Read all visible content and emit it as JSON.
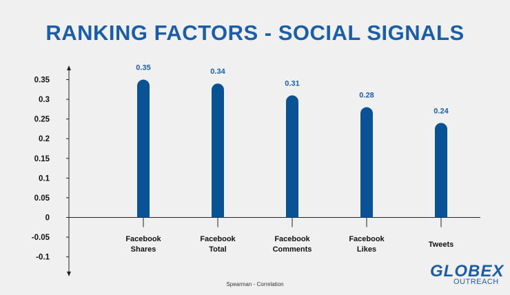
{
  "title": "RANKING FACTORS - SOCIAL SIGNALS",
  "caption": "Spearman - Correlation",
  "logo": {
    "main": "GLOBEX",
    "sub": "OUTREACH"
  },
  "colors": {
    "bar": "#0a5296",
    "title": "#1a5ea8",
    "label": "#1a5ea8",
    "axis": "#222222"
  },
  "chart_data": {
    "type": "bar",
    "title": "RANKING FACTORS - SOCIAL SIGNALS",
    "categories": [
      [
        "Facebook",
        "Shares"
      ],
      [
        "Facebook",
        "Total"
      ],
      [
        "Facebook",
        "Comments"
      ],
      [
        "Facebook",
        "Likes"
      ],
      [
        "Tweets"
      ]
    ],
    "values": [
      0.35,
      0.34,
      0.31,
      0.28,
      0.24
    ],
    "value_labels": [
      "0.35",
      "0.34",
      "0.31",
      "0.28",
      "0.24"
    ],
    "yticks": [
      "0.35",
      "0.3",
      "0.25",
      "0.2",
      "0.15",
      "0.1",
      "0.05",
      "0",
      "-0.05",
      "-0.1"
    ],
    "ylim": [
      -0.1,
      0.35
    ],
    "xlabel": "Spearman - Correlation",
    "grid": false,
    "legend": "none"
  }
}
